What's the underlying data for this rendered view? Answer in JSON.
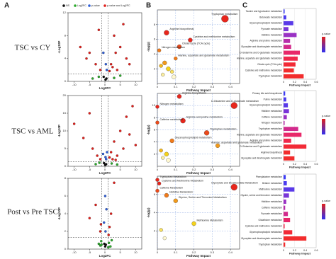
{
  "panel_labels": [
    "A",
    "B",
    "C"
  ],
  "row_labels": [
    "TSC vs CY",
    "TSC vs AML",
    "Post vs Pre TSC"
  ],
  "chart_data": [
    {
      "type": "scatter",
      "xlabel": "Log2FC",
      "ylabel": "-Log10P",
      "xlim": [
        -12,
        12
      ],
      "ylim": [
        0,
        12
      ],
      "xticks": [
        -10,
        -5,
        0,
        5,
        10
      ],
      "yticks": [
        0,
        4,
        8,
        12
      ],
      "thresholds": {
        "x": [
          -1,
          1
        ],
        "y": [
          1.3
        ]
      },
      "legend": true,
      "series": [
        {
          "name": "NS",
          "color": "#111111",
          "x": [
            0.2,
            -0.4,
            0.5
          ],
          "values": [
            0.3,
            0.8,
            0.5
          ]
        },
        {
          "name": "Log2FC",
          "color": "#2eaa2e",
          "x": [
            -4,
            -2,
            3,
            5
          ],
          "values": [
            0.5,
            0.8,
            0.6,
            1
          ]
        },
        {
          "name": "p-value",
          "color": "#2f5fd8",
          "x": [
            0.3,
            -0.5,
            0.6
          ],
          "values": [
            3,
            5,
            2
          ]
        },
        {
          "name": "p-value and Log2FC",
          "color": "#e0201c",
          "x": [
            -8,
            -6,
            -5,
            -3,
            -2,
            -1.5,
            2,
            3,
            3.5,
            4,
            5,
            6,
            7,
            8,
            1.5,
            2.5
          ],
          "values": [
            6,
            4,
            5,
            3,
            9,
            2,
            3,
            8,
            5,
            2,
            6,
            10,
            4,
            3,
            1.8,
            2.5
          ]
        }
      ]
    },
    {
      "type": "scatter",
      "xlabel": "Log2FC",
      "ylabel": "-Log10P",
      "xlim": [
        -12,
        12
      ],
      "ylim": [
        0,
        20
      ],
      "xticks": [
        -10,
        -5,
        0,
        5,
        10
      ],
      "yticks": [
        0,
        5,
        10,
        15,
        20
      ],
      "thresholds": {
        "x": [
          -1,
          1
        ],
        "y": [
          1.3
        ]
      },
      "series": [
        {
          "color": "#111111",
          "x": [
            0.1,
            -0.3,
            0.4
          ],
          "values": [
            0.4,
            0.9,
            0.6
          ]
        },
        {
          "color": "#2eaa2e",
          "x": [
            -3,
            -1.8,
            2.2,
            4
          ],
          "values": [
            0.6,
            1,
            0.8,
            0.5
          ]
        },
        {
          "color": "#2f5fd8",
          "x": [
            0.4,
            -0.6,
            0.7,
            0.2
          ],
          "values": [
            2,
            3.5,
            4,
            2.6
          ]
        },
        {
          "color": "#e0201c",
          "x": [
            -10,
            -7,
            -5,
            -4,
            -2.5,
            -1.5,
            1.5,
            2,
            3,
            4,
            5,
            6,
            7,
            8,
            9,
            10,
            2.5,
            3.5
          ],
          "values": [
            12,
            8,
            15,
            5,
            3,
            2,
            2.5,
            4,
            7,
            3,
            10,
            5,
            14,
            9,
            17,
            6,
            2,
            1.8
          ]
        }
      ]
    },
    {
      "type": "scatter",
      "xlabel": "Log2FC",
      "ylabel": "-Log10P",
      "xlim": [
        -12,
        12
      ],
      "ylim": [
        0,
        8
      ],
      "xticks": [
        -10,
        -5,
        0,
        5,
        10
      ],
      "yticks": [
        0,
        2,
        4,
        6,
        8
      ],
      "thresholds": {
        "x": [
          -1,
          1
        ],
        "y": [
          1.3
        ]
      },
      "series": [
        {
          "color": "#111111",
          "x": [
            0.1,
            -0.2,
            0.3
          ],
          "values": [
            0.3,
            0.6,
            0.5
          ]
        },
        {
          "color": "#2eaa2e",
          "x": [
            -1.5,
            -1.2,
            1.3,
            1.8,
            2.2,
            -2,
            1.1,
            -1.1
          ],
          "values": [
            0.4,
            0.9,
            0.7,
            0.3,
            1,
            0.6,
            0.2,
            0.5
          ]
        },
        {
          "color": "#2f5fd8",
          "x": [
            0.2,
            -0.3,
            0.5,
            0.1
          ],
          "values": [
            2,
            3,
            4.5,
            6
          ]
        },
        {
          "color": "#e0201c",
          "x": [
            -5,
            -3,
            -1.5,
            1.5,
            2,
            3,
            1.2,
            -1.3
          ],
          "values": [
            3.5,
            5,
            2,
            2.5,
            4,
            7.5,
            1.6,
            2.8
          ]
        }
      ]
    },
    {
      "type": "bubble",
      "xlabel": "Pathway Impact",
      "ylabel": "-log(p)",
      "xlim": [
        0,
        0.45
      ],
      "ylim": [
        0,
        10
      ],
      "xticks": [
        0,
        0.1,
        0.2,
        0.3,
        0.4
      ],
      "yticks": [
        2,
        4,
        6,
        8
      ],
      "grid": true,
      "x": [
        0.37,
        0.05,
        0.18,
        0.12,
        0.01,
        0.1,
        0.04,
        0.02,
        0.06,
        0.08,
        0.03,
        0.09
      ],
      "values": [
        8.8,
        6.9,
        5.9,
        5,
        4.5,
        3.4,
        2.8,
        2.4,
        2,
        1.6,
        1.2,
        0.9
      ],
      "sizes": [
        5,
        3.5,
        3,
        3,
        2.5,
        2.5,
        3,
        2.5,
        3,
        2.5,
        2.5,
        3
      ],
      "colors": [
        "#e8261c",
        "#e8261c",
        "#e8261c",
        "#ec4a1a",
        "#f07a1a",
        "#f07a1a",
        "#f29a1a",
        "#f5b81a",
        "#f5d21a",
        "#f8e060",
        "#fbeea0",
        "#fff8d0"
      ],
      "labels": [
        "Tryptophan metabolism",
        "Arginine biosynthesis",
        "Cysteine and methionine metabolism",
        "Citrate cycle (TCA cycle)",
        "Nitrogen metabolism",
        "Alanine, aspartate and glutamate metabolism",
        null,
        null,
        null,
        null,
        null,
        null
      ]
    },
    {
      "type": "bubble",
      "xlabel": "Pathway Impact",
      "ylabel": "-log(p)",
      "xlim": [
        0,
        0.45
      ],
      "ylim": [
        0,
        12
      ],
      "xticks": [
        0,
        0.1,
        0.2,
        0.3,
        0.4
      ],
      "yticks": [
        2,
        4,
        6,
        8,
        10
      ],
      "grid": true,
      "x": [
        0.12,
        0.42,
        0.0,
        0.14,
        0.0,
        0.27,
        0.08,
        0.33,
        0.02,
        0.05,
        0.03,
        0.06
      ],
      "values": [
        11.5,
        10,
        9.8,
        7.5,
        7.2,
        5.5,
        4.2,
        3.4,
        2.6,
        2,
        1.4,
        1
      ],
      "sizes": [
        3,
        4.5,
        2.5,
        3.5,
        2.5,
        3.5,
        3,
        3,
        2.5,
        3,
        2.5,
        3
      ],
      "colors": [
        "#e8261c",
        "#e8261c",
        "#e8261c",
        "#e8261c",
        "#ec4a1a",
        "#ec4a1a",
        "#f07a1a",
        "#f29a1a",
        "#f5b81a",
        "#f5d21a",
        "#fbeea0",
        "#fff8d0"
      ],
      "labels": [
        "Arginine biosynthesis",
        "D-Glutamine and D-glutamate metabolism",
        "Nitrogen metabolism",
        "Arginine and proline metabolism",
        "Caffeine metabolism",
        "Tryptophan metabolism",
        "Glycerophospholipid metabolism",
        "Alanine, aspartate and glutamate metabolism",
        null,
        null,
        null,
        null
      ]
    },
    {
      "type": "bubble",
      "xlabel": "Pathway Impact",
      "ylabel": "-log(p)",
      "xlim": [
        0,
        0.45
      ],
      "ylim": [
        0,
        8
      ],
      "xticks": [
        0,
        0.1,
        0.2,
        0.3,
        0.4
      ],
      "yticks": [
        2,
        4,
        6
      ],
      "grid": true,
      "x": [
        0.0,
        0.01,
        0.42,
        0.0,
        0.05,
        0.1,
        0.2,
        0.02,
        0.04
      ],
      "values": [
        7.6,
        7.2,
        6.8,
        6.4,
        5.9,
        5.3,
        2.8,
        2.1,
        1.2
      ],
      "sizes": [
        2.5,
        2.5,
        4.5,
        2.5,
        3,
        3,
        3,
        2.5,
        2.5
      ],
      "colors": [
        "#e8261c",
        "#e8261c",
        "#e8261c",
        "#ec4a1a",
        "#f07a1a",
        "#f29a1a",
        "#f5d21a",
        "#f8e060",
        "#fff8d0"
      ],
      "labels": [
        "Tryptophan Metabolism",
        "Cysteine and Methionine Metabolism",
        "Glyoxylate and Dicarboxylate Metabolism",
        "Caffeine Metabolism",
        "Histidine Metabolism",
        "Glycine, Serine and Threonine Metabolism",
        "Methionine Metabolism",
        null,
        null
      ]
    },
    {
      "type": "bar",
      "xlabel": "Pathway Impact",
      "xlim": [
        0,
        0.6
      ],
      "xticks": [
        0,
        0.2,
        0.4,
        0.6
      ],
      "colorbar": {
        "title": "p.value",
        "colors": [
          "#e0201c",
          "#3030f0"
        ]
      },
      "categories": [
        "Taurine and hypotaurine metabolism",
        "Butanoate metabolism",
        "Glycerophospholipid metabolism",
        "Pyruvate metabolism",
        "Histidine metabolism",
        "Arginine and proline metabolism",
        "Glyoxylate and dicarboxylate metabolism",
        "D-Glutamine and D-glutamate metabolism",
        "Alanine, aspartate and glutamate metabolism",
        "Citrate cycle (TCA cycle)",
        "Cysteine and methionine metabolism",
        "Tryptophan metabolism"
      ],
      "values": [
        0.02,
        0.05,
        0.18,
        0.09,
        0.24,
        0.12,
        0.14,
        0.3,
        0.26,
        0.22,
        0.19,
        0.37
      ],
      "colors": [
        "#3b3bf5",
        "#4a3bf0",
        "#5a3ae8",
        "#7a36d8",
        "#9a32c4",
        "#b82eab",
        "#d22a8c",
        "#e8286a",
        "#f0284c",
        "#f22a36",
        "#f22c2c",
        "#f22c2c"
      ]
    },
    {
      "type": "bar",
      "xlabel": "Pathway Impact",
      "xlim": [
        0,
        0.6
      ],
      "xticks": [
        0,
        0.2,
        0.4,
        0.6
      ],
      "colorbar": {
        "title": "p.value",
        "colors": [
          "#e0201c",
          "#3030f0"
        ]
      },
      "categories": [
        "Primary bile acid biosynthesis",
        "Purine metabolism",
        "Glycerophospholipid metabolism",
        "Histidine metabolism",
        "Caffeine metabolism",
        "Nitrogen metabolism",
        "Tryptophan metabolism",
        "Alanine, aspartate and glutamate metabolism",
        "Arginine and proline metabolism",
        "D-Glutamine and D-glutamate metabolism",
        "Arginine biosynthesis",
        "Glyoxylate and dicarboxylate metabolism"
      ],
      "values": [
        0.03,
        0.05,
        0.08,
        0.1,
        0.06,
        0.02,
        0.27,
        0.33,
        0.14,
        0.42,
        0.12,
        0.2
      ],
      "colors": [
        "#3b3bf5",
        "#4a3bf0",
        "#5a3ae8",
        "#7a36d8",
        "#9a32c4",
        "#b82eab",
        "#d22a8c",
        "#e8286a",
        "#f0284c",
        "#f22a36",
        "#f22c2c",
        "#f22c2c"
      ]
    },
    {
      "type": "bar",
      "xlabel": "Pathway Impact",
      "xlim": [
        0,
        0.6
      ],
      "xticks": [
        0,
        0.2,
        0.4,
        0.6
      ],
      "colorbar": {
        "title": "p.value",
        "colors": [
          "#e0201c",
          "#3030f0"
        ]
      },
      "categories": [
        "Phenylalanine metabolism",
        "Betaine metabolism",
        "Methionine metabolism",
        "Glycine, serine and threonine metabolism",
        "Histidine metabolism",
        "Caffeine metabolism",
        "Pyruvate metabolism",
        "Glutathione metabolism",
        "Cysteine and methionine metabolism",
        "Glycerophospholipid metabolism",
        "Glyoxylate and dicarboxylate metabolism",
        "Tryptophan metabolism"
      ],
      "values": [
        0.04,
        0.06,
        0.2,
        0.1,
        0.05,
        0.03,
        0.08,
        0.12,
        0.02,
        0.16,
        0.42,
        0.03
      ],
      "colors": [
        "#3b3bf5",
        "#4a3bf0",
        "#5a3ae8",
        "#7a36d8",
        "#9a32c4",
        "#b82eab",
        "#d22a8c",
        "#e8286a",
        "#f0284c",
        "#f22a36",
        "#f22c2c",
        "#f22c2c"
      ]
    }
  ]
}
